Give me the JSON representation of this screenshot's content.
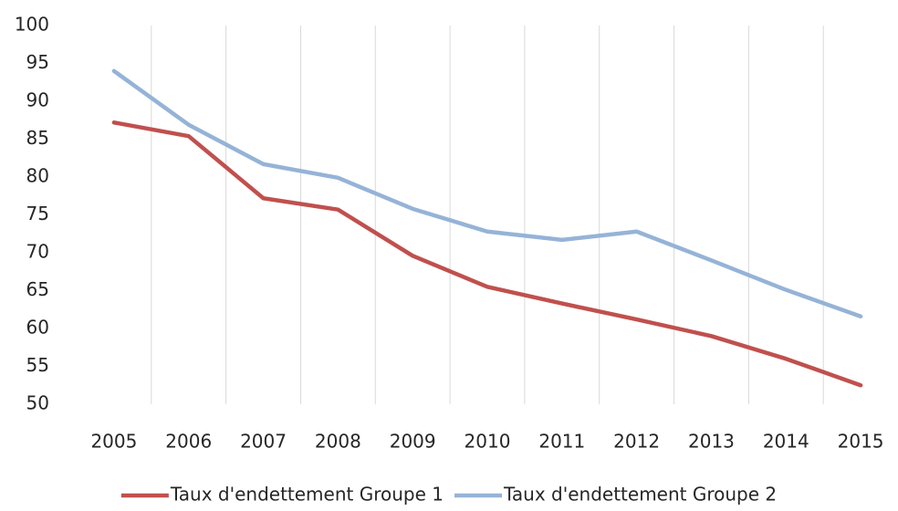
{
  "chart_data": {
    "type": "line",
    "categories": [
      "2005",
      "2006",
      "2007",
      "2008",
      "2009",
      "2010",
      "2011",
      "2012",
      "2013",
      "2014",
      "2015"
    ],
    "series": [
      {
        "name": "Taux d'endettement Groupe 1",
        "color": "#c0504d",
        "values": [
          87.2,
          85.4,
          77.2,
          75.7,
          69.6,
          65.5,
          63.3,
          61.2,
          59,
          56,
          52.5
        ]
      },
      {
        "name": "Taux d'endettement Groupe 2",
        "color": "#95b3d7",
        "values": [
          94,
          86.9,
          81.7,
          79.9,
          75.8,
          72.8,
          71.7,
          72.8,
          69,
          65.1,
          61.6
        ]
      }
    ],
    "ylim": [
      50,
      100
    ],
    "yticks": [
      50,
      55,
      60,
      65,
      70,
      75,
      80,
      85,
      90,
      95,
      100
    ],
    "grid": "x",
    "legend": "bottom"
  }
}
